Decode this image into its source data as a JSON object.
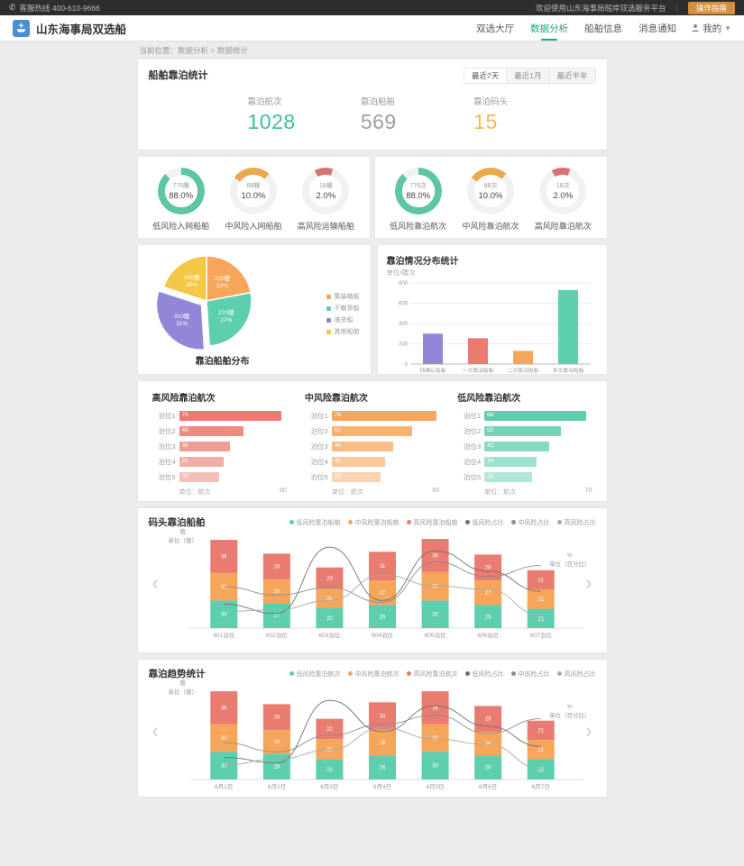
{
  "topbar": {
    "hotline": "客服热线  400-610-9666",
    "welcome": "欢迎使用山东海事局船岸双选服务平台",
    "divider": "丨",
    "action_label": "操作指南"
  },
  "header": {
    "title": "山东海事局双选船",
    "nav": [
      {
        "label": "双选大厅",
        "active": false
      },
      {
        "label": "数据分析",
        "active": true
      },
      {
        "label": "船舶信息",
        "active": false
      },
      {
        "label": "消息通知",
        "active": false
      }
    ],
    "user": {
      "name": "我的"
    }
  },
  "breadcrumb": {
    "text": "当前位置：数据分析 > 数据统计"
  },
  "stats_card": {
    "title": "船舶靠泊统计",
    "range_tabs": [
      {
        "label": "最近7天",
        "active": true
      },
      {
        "label": "最近1月",
        "active": false
      },
      {
        "label": "最近半年",
        "active": false
      }
    ],
    "stats": [
      {
        "label": "靠泊航次",
        "value": "1028",
        "color": "#41bf9e"
      },
      {
        "label": "靠泊船舶",
        "value": "569",
        "color": "#9aa0a6"
      },
      {
        "label": "靠泊码头",
        "value": "15",
        "color": "#f4b757"
      }
    ]
  },
  "gauge_cards": [
    {
      "gauges": [
        {
          "value": "776艘",
          "pct": "88.0%",
          "sweep": 88,
          "rotate": 0,
          "color": "#5ec6a2",
          "label": "低风险入网船舶"
        },
        {
          "value": "88艘",
          "pct": "10.0%",
          "sweep": 27,
          "rotate": -55,
          "color": "#eaa94d",
          "label": "中风险入网船舶"
        },
        {
          "value": "18艘",
          "pct": "2.0%",
          "sweep": 13,
          "rotate": -28,
          "color": "#d77272",
          "label": "高风险运输船舶"
        }
      ]
    },
    {
      "gauges": [
        {
          "value": "776次",
          "pct": "88.0%",
          "sweep": 88,
          "rotate": 0,
          "color": "#5ec6a2",
          "label": "低风险靠泊航次"
        },
        {
          "value": "88次",
          "pct": "10.0%",
          "sweep": 27,
          "rotate": -55,
          "color": "#eaa94d",
          "label": "中风险靠泊航次"
        },
        {
          "value": "18次",
          "pct": "2.0%",
          "sweep": 13,
          "rotate": -28,
          "color": "#d77272",
          "label": "高风险靠泊航次"
        }
      ]
    }
  ],
  "chart_data": [
    {
      "type": "pie",
      "title": "靠泊船舶分布",
      "unit": "艘",
      "legend_position": "right",
      "slices": [
        {
          "name": "集装箱船",
          "value": 220,
          "pct": "22%",
          "color": "#f5a65b",
          "explode": false
        },
        {
          "name": "干散货船",
          "value": 270,
          "pct": "27%",
          "color": "#5ecfae",
          "explode": false
        },
        {
          "name": "液货船",
          "value": 310,
          "pct": "31%",
          "color": "#9186d8",
          "explode": true
        },
        {
          "name": "其他船舶",
          "value": 200,
          "pct": "20%",
          "color": "#f3c846",
          "explode": false
        }
      ]
    },
    {
      "type": "bar",
      "title": "靠泊情况分布统计",
      "subtitle": "单位/艘次",
      "categories": [
        "待确认船舶",
        "一次靠泊船舶",
        "二次靠泊船舶",
        "多次靠泊船舶"
      ],
      "values": [
        300,
        255,
        130,
        730
      ],
      "colors": [
        "#9186d8",
        "#e97b70",
        "#f5a65b",
        "#5ecfae"
      ],
      "ylim": [
        0,
        800
      ],
      "yticks": [
        0,
        200,
        400,
        600,
        800
      ],
      "grid": true
    },
    {
      "type": "bar",
      "orientation": "horizontal",
      "title": "高风险靠泊航次",
      "color": "#e97b70",
      "categories": [
        "泊位1",
        "泊位2",
        "泊位3",
        "泊位4",
        "泊位5"
      ],
      "values": [
        76,
        48,
        38,
        33,
        30
      ],
      "xlim": [
        0,
        80
      ],
      "unit": "单位：航次",
      "max_label": "80"
    },
    {
      "type": "bar",
      "orientation": "horizontal",
      "title": "中风险靠泊航次",
      "color": "#f5a65b",
      "categories": [
        "泊位1",
        "泊位2",
        "泊位3",
        "泊位4",
        "泊位5"
      ],
      "values": [
        78,
        60,
        46,
        40,
        36
      ],
      "xlim": [
        0,
        80
      ],
      "unit": "单位：航次",
      "max_label": "80"
    },
    {
      "type": "bar",
      "orientation": "horizontal",
      "title": "低风险靠泊航次",
      "color": "#5ecfae",
      "categories": [
        "泊位1",
        "泊位2",
        "泊位3",
        "泊位4",
        "泊位5"
      ],
      "values": [
        66,
        50,
        42,
        34,
        31
      ],
      "xlim": [
        0,
        70
      ],
      "unit": "单位：航次",
      "max_label": "70"
    },
    {
      "type": "bar+line-stacked",
      "title": "码头靠泊船舶",
      "axis_left_1": "艘",
      "axis_left_2": "单位（艘）",
      "axis_right_1": "%",
      "axis_right_2": "单位（百分比）",
      "categories": [
        "601泊位",
        "602泊位",
        "603泊位",
        "604泊位",
        "605泊位",
        "606泊位",
        "607泊位"
      ],
      "bar_series": [
        {
          "name": "低风险靠泊船舶",
          "color": "#5ecfae",
          "values": [
            30,
            27,
            22,
            25,
            30,
            25,
            21
          ]
        },
        {
          "name": "中风险靠泊船舶",
          "color": "#f5a65b",
          "values": [
            30,
            26,
            21,
            27,
            31,
            27,
            21
          ]
        },
        {
          "name": "高风险靠泊船舶",
          "color": "#e97b70",
          "values": [
            36,
            28,
            23,
            31,
            36,
            28,
            21
          ]
        }
      ],
      "line_series": [
        {
          "name": "低风险占比",
          "color": "#6f6f6f",
          "values": [
            26,
            16,
            88,
            30,
            84,
            62,
            40
          ]
        },
        {
          "name": "中风险占比",
          "color": "#8d8d8d",
          "values": [
            45,
            36,
            44,
            28,
            72,
            56,
            68
          ]
        },
        {
          "name": "高风险占比",
          "color": "#a9a9a9",
          "values": [
            18,
            20,
            30,
            58,
            46,
            42,
            14
          ]
        }
      ],
      "ylim_left": [
        0,
        100
      ],
      "ylim_right": [
        0,
        100
      ]
    },
    {
      "type": "bar+line-stacked",
      "title": "靠泊趋势统计",
      "axis_left_1": "艘",
      "axis_left_2": "单位（艘）",
      "axis_right_1": "%",
      "axis_right_2": "单位（百分比）",
      "categories": [
        "6月1日",
        "6月2日",
        "6月3日",
        "6月4日",
        "6月5日",
        "6月6日",
        "6月7日"
      ],
      "bar_series": [
        {
          "name": "低风险靠泊航次",
          "color": "#5ecfae",
          "values": [
            30,
            28,
            22,
            26,
            30,
            26,
            22
          ]
        },
        {
          "name": "中风险靠泊航次",
          "color": "#f5a65b",
          "values": [
            30,
            26,
            22,
            28,
            30,
            26,
            21
          ]
        },
        {
          "name": "高风险靠泊航次",
          "color": "#e97b70",
          "values": [
            36,
            28,
            22,
            30,
            36,
            28,
            21
          ]
        }
      ],
      "line_series": [
        {
          "name": "低风险占比",
          "color": "#6f6f6f",
          "values": [
            24,
            18,
            86,
            52,
            80,
            58,
            36
          ]
        },
        {
          "name": "中风险占比",
          "color": "#8d8d8d",
          "values": [
            40,
            30,
            48,
            60,
            70,
            50,
            66
          ]
        },
        {
          "name": "高风险占比",
          "color": "#a9a9a9",
          "values": [
            16,
            22,
            32,
            56,
            44,
            38,
            12
          ]
        }
      ],
      "ylim_left": [
        0,
        100
      ],
      "ylim_right": [
        0,
        100
      ]
    }
  ]
}
